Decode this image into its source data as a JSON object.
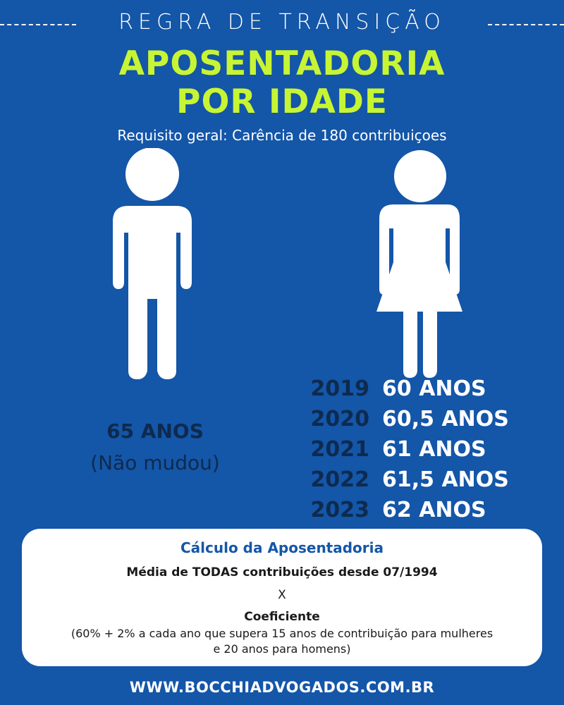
{
  "header": {
    "label": "REGRA DE TRANSIÇÃO"
  },
  "title": {
    "line1": "APOSENTADORIA",
    "line2": "POR IDADE"
  },
  "subtitle": "Requisito geral: Carência de 180 contribuiçoes",
  "icons": {
    "man": "man-figure-icon",
    "woman": "woman-figure-icon"
  },
  "men": {
    "age": "65 ANOS",
    "note": "(Não mudou)"
  },
  "women": {
    "schedule": [
      {
        "year": "2019",
        "age": "60 ANOS"
      },
      {
        "year": "2020",
        "age": "60,5 ANOS"
      },
      {
        "year": "2021",
        "age": "61 ANOS"
      },
      {
        "year": "2022",
        "age": "61,5 ANOS"
      },
      {
        "year": "2023",
        "age": "62 ANOS"
      }
    ]
  },
  "calculation": {
    "title": "Cálculo da Aposentadoria",
    "line1": "Média de TODAS contribuições desde 07/1994",
    "operator": "X",
    "line2": "Coeficiente",
    "note_line1": "(60% + 2% a cada ano que supera 15 anos de contribuição para mulheres",
    "note_line2": "e 20 anos para homens)"
  },
  "footer": {
    "url": "WWW.BOCCHIADVOGADOS.COM.BR"
  },
  "colors": {
    "background": "#1456a8",
    "title_accent": "#c7f533",
    "dark_text": "#0e2a4e",
    "calc_title": "#1456a8",
    "box": "#ffffff"
  }
}
